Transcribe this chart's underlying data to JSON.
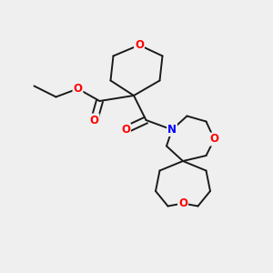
{
  "bg_color": "#efefef",
  "bond_color": "#1a1a1a",
  "O_color": "#ff0000",
  "N_color": "#0000ff",
  "font_size_atom": 8.5,
  "line_width": 1.4,
  "figsize": [
    3.0,
    3.0
  ],
  "dpi": 100,
  "xlim": [
    0,
    10
  ],
  "ylim": [
    0,
    10
  ]
}
